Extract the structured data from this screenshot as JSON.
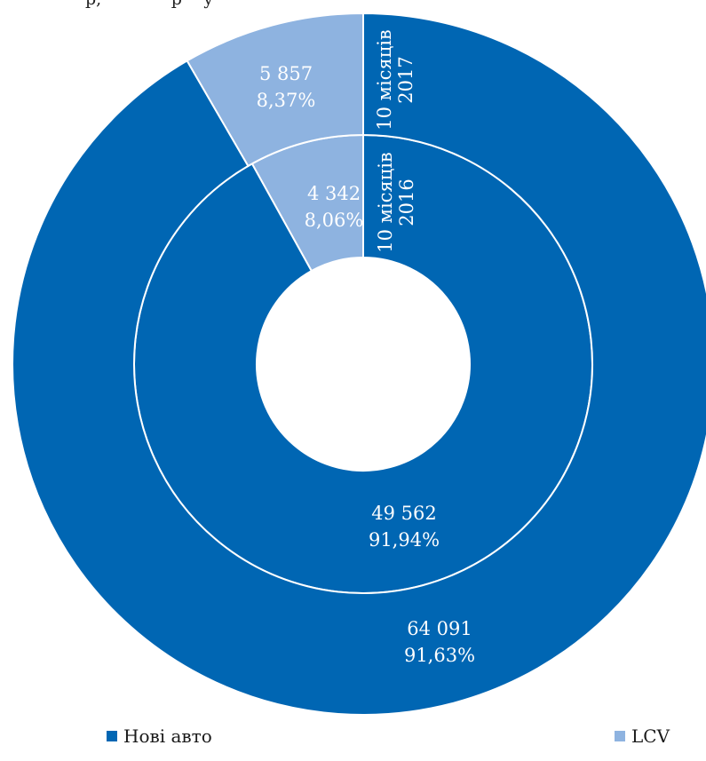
{
  "colors": {
    "new_cars": "#0066b3",
    "lcv": "#8eb3e0"
  },
  "chart_data": {
    "type": "donut",
    "legend_position": "bottom",
    "categories": [
      "Нові авто",
      "LCV"
    ],
    "rings": [
      {
        "name": "10 місяців 2016",
        "name_lines": [
          "10 місяців",
          "2016"
        ],
        "values": [
          49562,
          4342
        ],
        "value_labels": [
          "49 562",
          "4 342"
        ],
        "percent_labels": [
          "91,94%",
          "8,06%"
        ]
      },
      {
        "name": "10 місяців 2017",
        "name_lines": [
          "10 місяців",
          "2017"
        ],
        "values": [
          64091,
          5857
        ],
        "value_labels": [
          "64 091",
          "5 857"
        ],
        "percent_labels": [
          "91,63%",
          "8,37%"
        ]
      }
    ]
  },
  "legend": {
    "new_cars": "Нові авто",
    "lcv": "LCV"
  }
}
